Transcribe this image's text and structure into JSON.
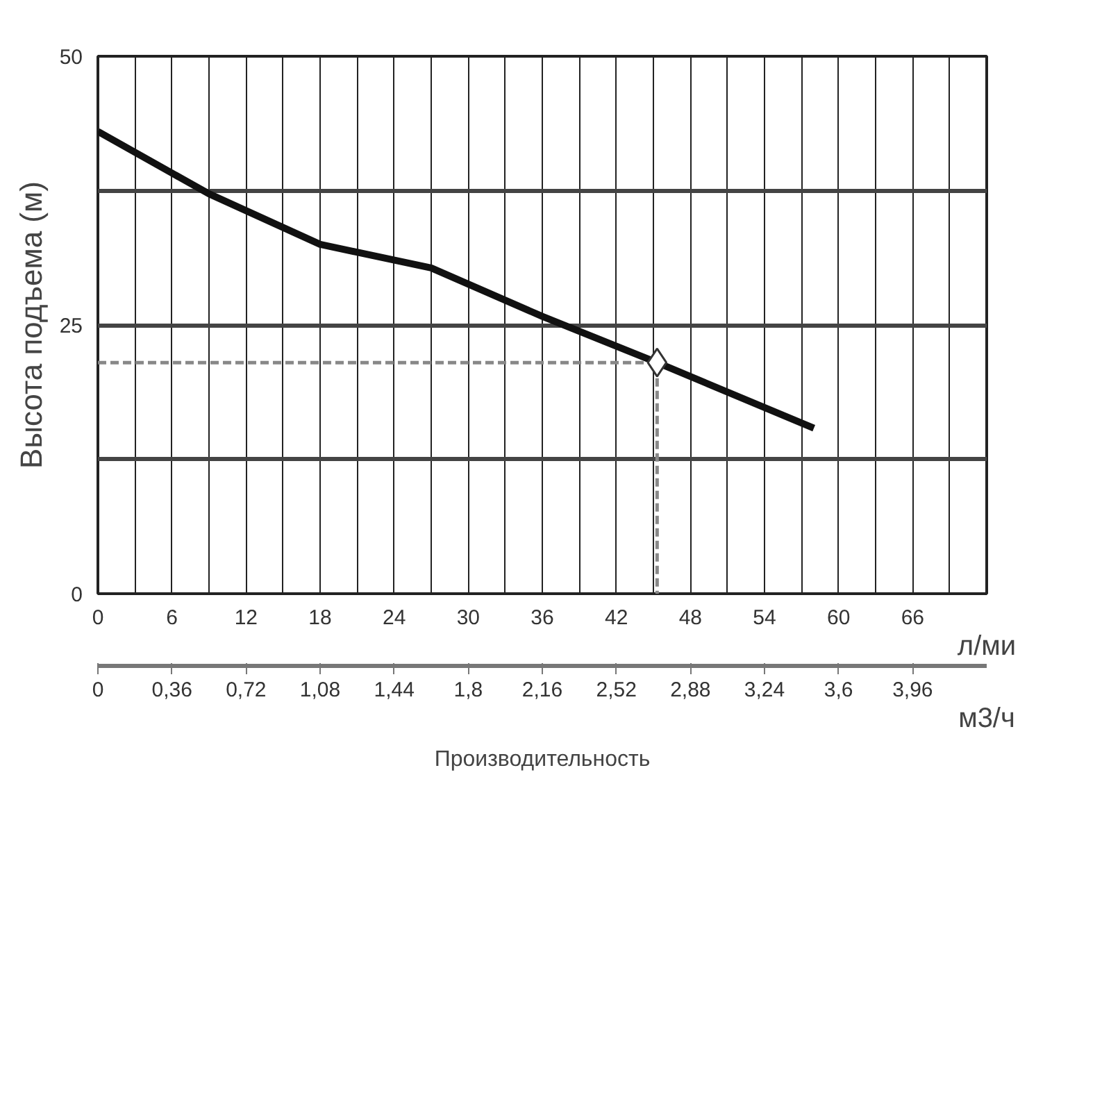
{
  "chart_data": {
    "type": "line",
    "xlabel": "л/ми",
    "x2label": "м3/ч",
    "ylabel": "Высота подъема (м)",
    "annotations": [
      "Производительность"
    ],
    "xlim": [
      0,
      72
    ],
    "xticks": [
      0,
      6,
      12,
      18,
      24,
      30,
      36,
      42,
      48,
      54,
      60,
      66
    ],
    "x2lim": [
      0,
      4.32
    ],
    "x2ticks": [
      0,
      {
        "value": 0.36,
        "label": "0,36"
      },
      {
        "value": 0.72,
        "label": "0,72"
      },
      {
        "value": 1.08,
        "label": "1,08"
      },
      {
        "value": 1.44,
        "label": "1,44"
      },
      {
        "value": 1.8,
        "label": "1,8"
      },
      {
        "value": 2.16,
        "label": "2,16"
      },
      {
        "value": 2.52,
        "label": "2,52"
      },
      {
        "value": 2.88,
        "label": "2,88"
      },
      {
        "value": 3.24,
        "label": "3,24"
      },
      {
        "value": 3.6,
        "label": "3,6"
      },
      {
        "value": 3.96,
        "label": "3,96"
      }
    ],
    "ylim": [
      0,
      50
    ],
    "yticks": [
      0,
      {
        "value": 12.5,
        "label": null
      },
      25,
      {
        "value": 37.5,
        "label": null
      },
      50
    ],
    "grid": true,
    "series": [
      {
        "color": "#111111",
        "x": [
          0,
          9,
          18,
          27,
          36,
          45.3,
          58
        ],
        "values": [
          43,
          37.2,
          32.5,
          30.3,
          25.8,
          21.5,
          15.4
        ]
      },
      {
        "type": "line",
        "color": "#888888",
        "line_style": "dashed",
        "x": [
          0,
          45.3,
          45.3
        ],
        "values": [
          21.5,
          21.5,
          0
        ]
      },
      {
        "type": "scatter",
        "color": "#333333",
        "marker": "diamond",
        "x": [
          45.3
        ],
        "values": [
          21.5
        ]
      }
    ]
  }
}
